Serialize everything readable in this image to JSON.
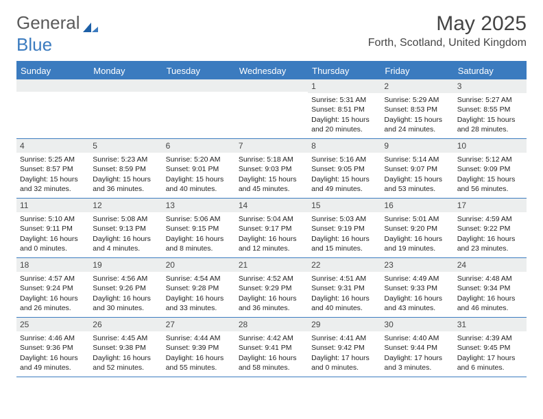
{
  "logo": {
    "text_a": "General",
    "text_b": "Blue"
  },
  "title": "May 2025",
  "location": "Forth, Scotland, United Kingdom",
  "colors": {
    "accent": "#3b7bbf",
    "header_bg": "#3b7bbf",
    "header_text": "#ffffff",
    "daynum_bg": "#eceeee",
    "text": "#222222",
    "logo_gray": "#5a5a5a"
  },
  "day_headers": [
    "Sunday",
    "Monday",
    "Tuesday",
    "Wednesday",
    "Thursday",
    "Friday",
    "Saturday"
  ],
  "weeks": [
    [
      {
        "n": null
      },
      {
        "n": null
      },
      {
        "n": null
      },
      {
        "n": null
      },
      {
        "n": 1,
        "sunrise": "5:31 AM",
        "sunset": "8:51 PM",
        "daylight": "15 hours and 20 minutes."
      },
      {
        "n": 2,
        "sunrise": "5:29 AM",
        "sunset": "8:53 PM",
        "daylight": "15 hours and 24 minutes."
      },
      {
        "n": 3,
        "sunrise": "5:27 AM",
        "sunset": "8:55 PM",
        "daylight": "15 hours and 28 minutes."
      }
    ],
    [
      {
        "n": 4,
        "sunrise": "5:25 AM",
        "sunset": "8:57 PM",
        "daylight": "15 hours and 32 minutes."
      },
      {
        "n": 5,
        "sunrise": "5:23 AM",
        "sunset": "8:59 PM",
        "daylight": "15 hours and 36 minutes."
      },
      {
        "n": 6,
        "sunrise": "5:20 AM",
        "sunset": "9:01 PM",
        "daylight": "15 hours and 40 minutes."
      },
      {
        "n": 7,
        "sunrise": "5:18 AM",
        "sunset": "9:03 PM",
        "daylight": "15 hours and 45 minutes."
      },
      {
        "n": 8,
        "sunrise": "5:16 AM",
        "sunset": "9:05 PM",
        "daylight": "15 hours and 49 minutes."
      },
      {
        "n": 9,
        "sunrise": "5:14 AM",
        "sunset": "9:07 PM",
        "daylight": "15 hours and 53 minutes."
      },
      {
        "n": 10,
        "sunrise": "5:12 AM",
        "sunset": "9:09 PM",
        "daylight": "15 hours and 56 minutes."
      }
    ],
    [
      {
        "n": 11,
        "sunrise": "5:10 AM",
        "sunset": "9:11 PM",
        "daylight": "16 hours and 0 minutes."
      },
      {
        "n": 12,
        "sunrise": "5:08 AM",
        "sunset": "9:13 PM",
        "daylight": "16 hours and 4 minutes."
      },
      {
        "n": 13,
        "sunrise": "5:06 AM",
        "sunset": "9:15 PM",
        "daylight": "16 hours and 8 minutes."
      },
      {
        "n": 14,
        "sunrise": "5:04 AM",
        "sunset": "9:17 PM",
        "daylight": "16 hours and 12 minutes."
      },
      {
        "n": 15,
        "sunrise": "5:03 AM",
        "sunset": "9:19 PM",
        "daylight": "16 hours and 15 minutes."
      },
      {
        "n": 16,
        "sunrise": "5:01 AM",
        "sunset": "9:20 PM",
        "daylight": "16 hours and 19 minutes."
      },
      {
        "n": 17,
        "sunrise": "4:59 AM",
        "sunset": "9:22 PM",
        "daylight": "16 hours and 23 minutes."
      }
    ],
    [
      {
        "n": 18,
        "sunrise": "4:57 AM",
        "sunset": "9:24 PM",
        "daylight": "16 hours and 26 minutes."
      },
      {
        "n": 19,
        "sunrise": "4:56 AM",
        "sunset": "9:26 PM",
        "daylight": "16 hours and 30 minutes."
      },
      {
        "n": 20,
        "sunrise": "4:54 AM",
        "sunset": "9:28 PM",
        "daylight": "16 hours and 33 minutes."
      },
      {
        "n": 21,
        "sunrise": "4:52 AM",
        "sunset": "9:29 PM",
        "daylight": "16 hours and 36 minutes."
      },
      {
        "n": 22,
        "sunrise": "4:51 AM",
        "sunset": "9:31 PM",
        "daylight": "16 hours and 40 minutes."
      },
      {
        "n": 23,
        "sunrise": "4:49 AM",
        "sunset": "9:33 PM",
        "daylight": "16 hours and 43 minutes."
      },
      {
        "n": 24,
        "sunrise": "4:48 AM",
        "sunset": "9:34 PM",
        "daylight": "16 hours and 46 minutes."
      }
    ],
    [
      {
        "n": 25,
        "sunrise": "4:46 AM",
        "sunset": "9:36 PM",
        "daylight": "16 hours and 49 minutes."
      },
      {
        "n": 26,
        "sunrise": "4:45 AM",
        "sunset": "9:38 PM",
        "daylight": "16 hours and 52 minutes."
      },
      {
        "n": 27,
        "sunrise": "4:44 AM",
        "sunset": "9:39 PM",
        "daylight": "16 hours and 55 minutes."
      },
      {
        "n": 28,
        "sunrise": "4:42 AM",
        "sunset": "9:41 PM",
        "daylight": "16 hours and 58 minutes."
      },
      {
        "n": 29,
        "sunrise": "4:41 AM",
        "sunset": "9:42 PM",
        "daylight": "17 hours and 0 minutes."
      },
      {
        "n": 30,
        "sunrise": "4:40 AM",
        "sunset": "9:44 PM",
        "daylight": "17 hours and 3 minutes."
      },
      {
        "n": 31,
        "sunrise": "4:39 AM",
        "sunset": "9:45 PM",
        "daylight": "17 hours and 6 minutes."
      }
    ]
  ],
  "labels": {
    "sunrise": "Sunrise:",
    "sunset": "Sunset:",
    "daylight": "Daylight:"
  }
}
